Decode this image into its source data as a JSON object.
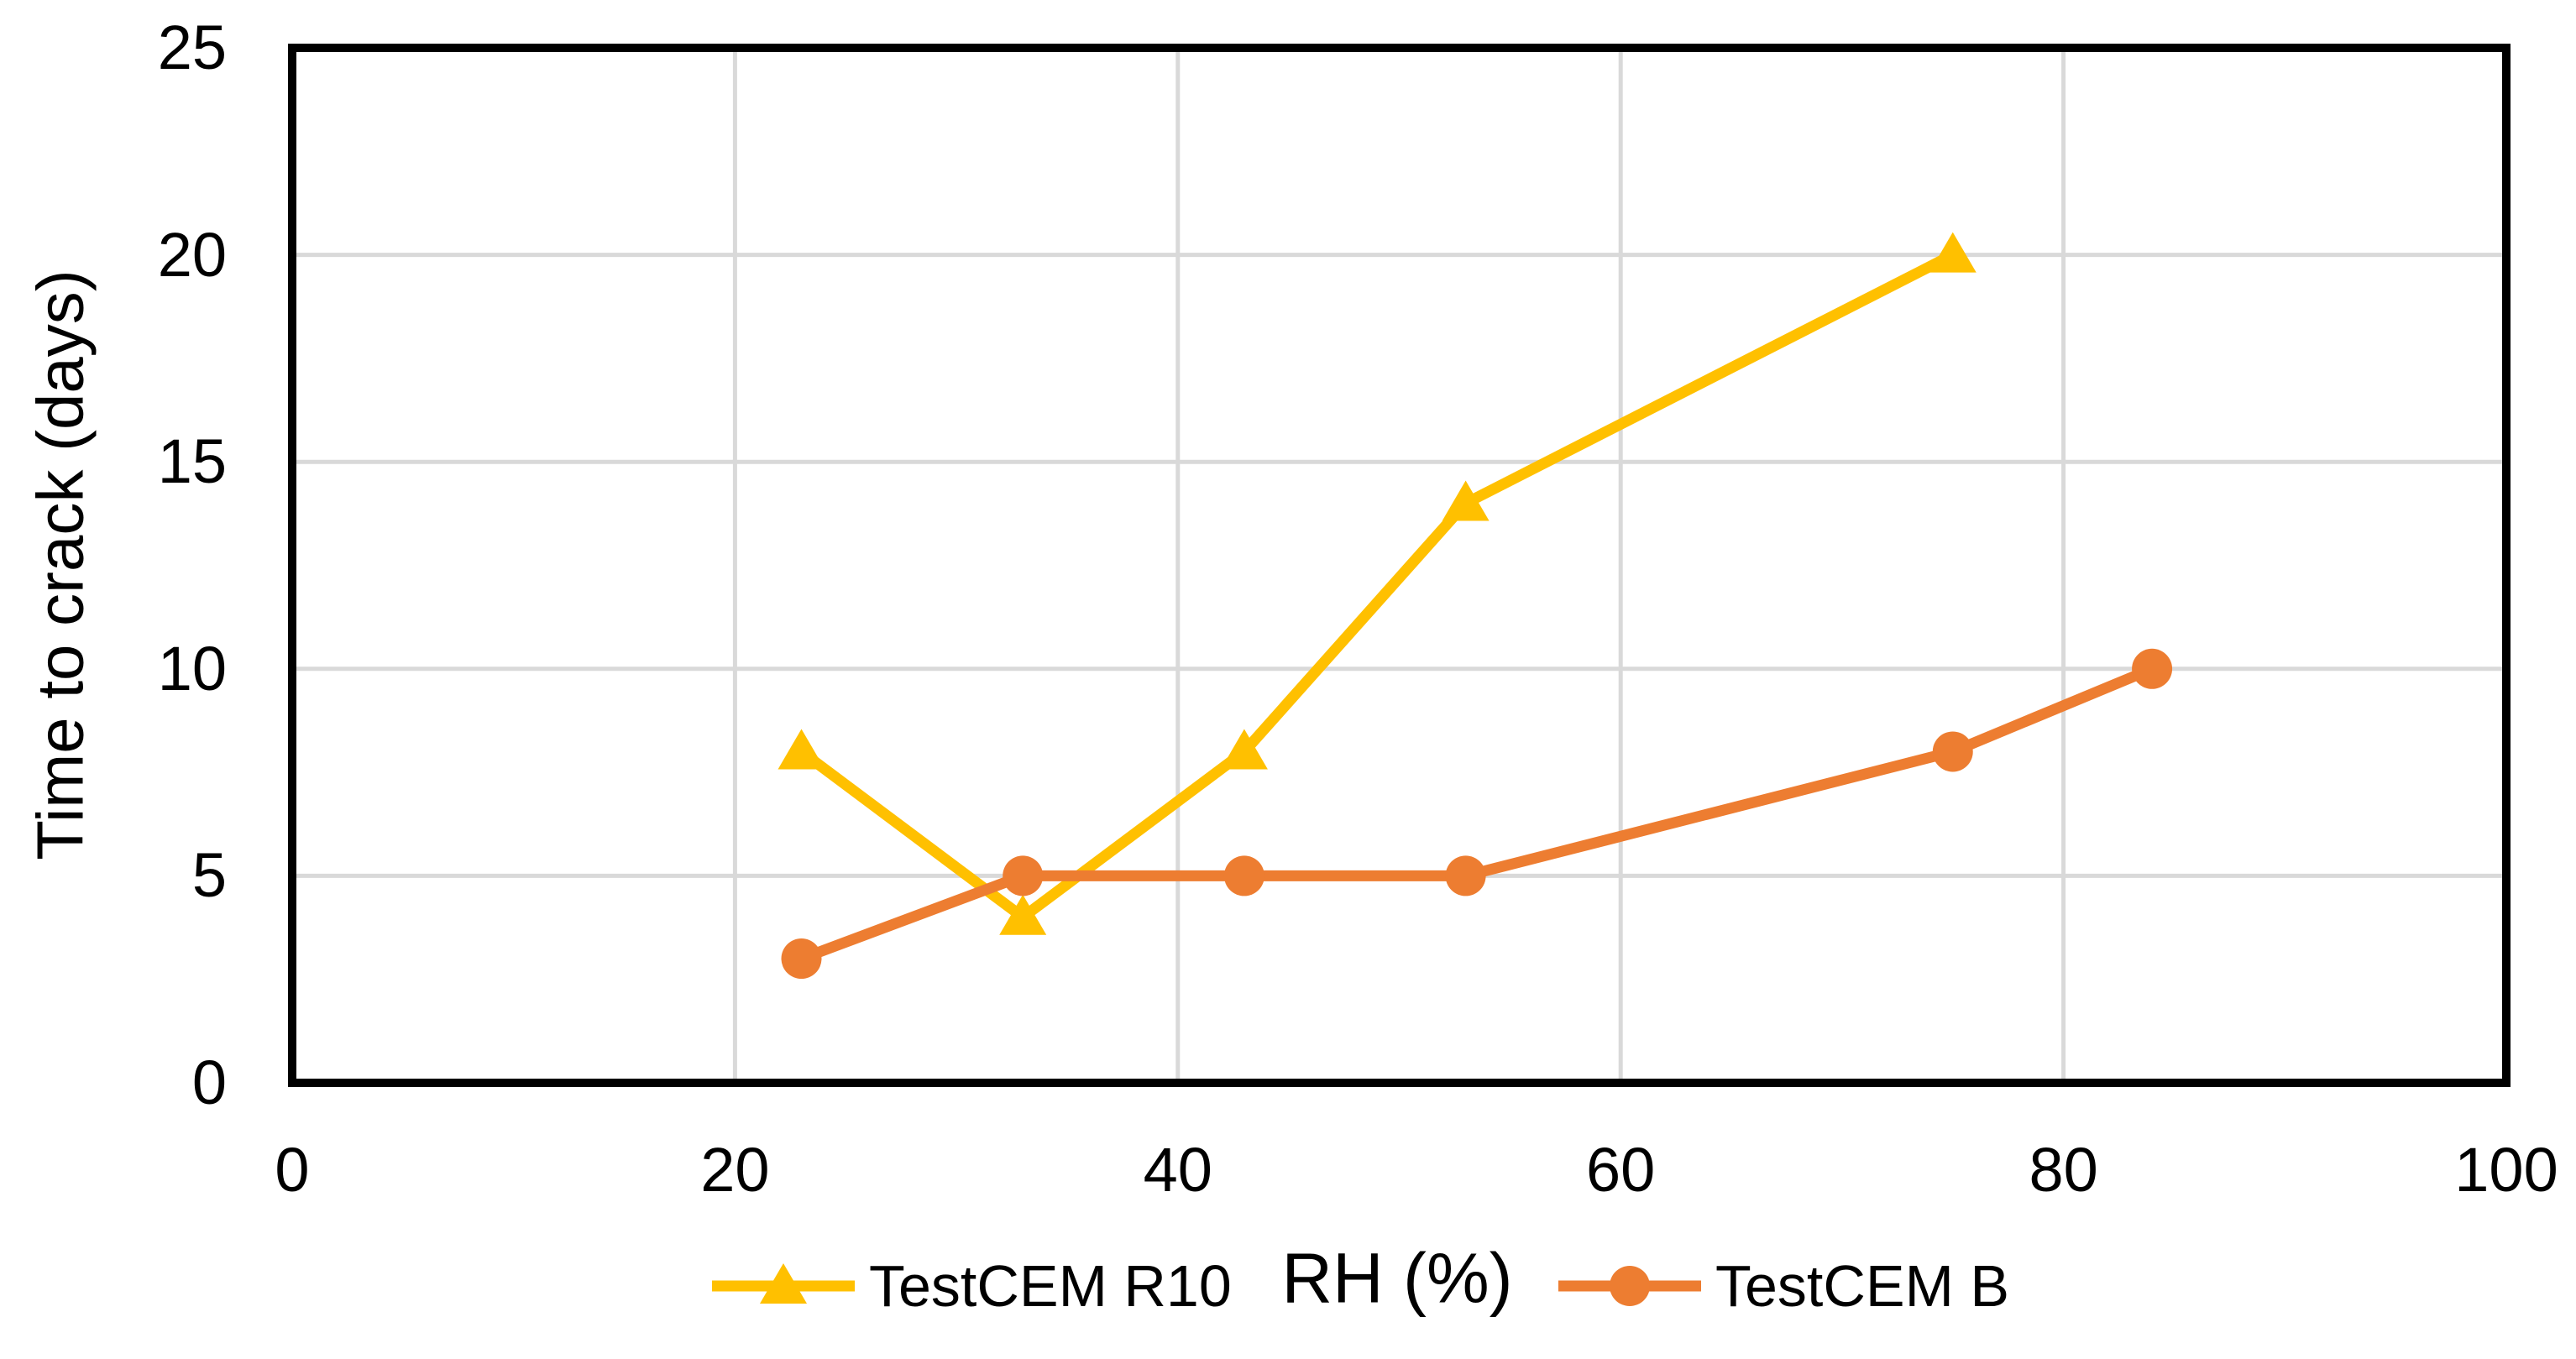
{
  "chart_data": {
    "type": "line",
    "title": "",
    "xlabel": "RH (%)",
    "ylabel": "Time to crack (days)",
    "xlim": [
      0,
      100
    ],
    "ylim": [
      0,
      25
    ],
    "x_ticks": [
      0,
      20,
      40,
      60,
      80,
      100
    ],
    "y_ticks": [
      0,
      5,
      10,
      15,
      20,
      25
    ],
    "grid": true,
    "legend_position": "bottom-center",
    "colors": {
      "gridline": "#D9D9D9",
      "axis": "#000000",
      "text": "#000000",
      "background": "#FFFFFF"
    },
    "series": [
      {
        "name": "TestCEM R10",
        "color": "#FFC000",
        "marker": "triangle",
        "x": [
          23,
          33,
          43,
          53,
          75
        ],
        "y": [
          8,
          4,
          8,
          14,
          20
        ]
      },
      {
        "name": "TestCEM B",
        "color": "#ED7D31",
        "marker": "circle",
        "x": [
          23,
          33,
          43,
          53,
          75,
          84
        ],
        "y": [
          3,
          5,
          5,
          5,
          8,
          10
        ]
      }
    ]
  }
}
